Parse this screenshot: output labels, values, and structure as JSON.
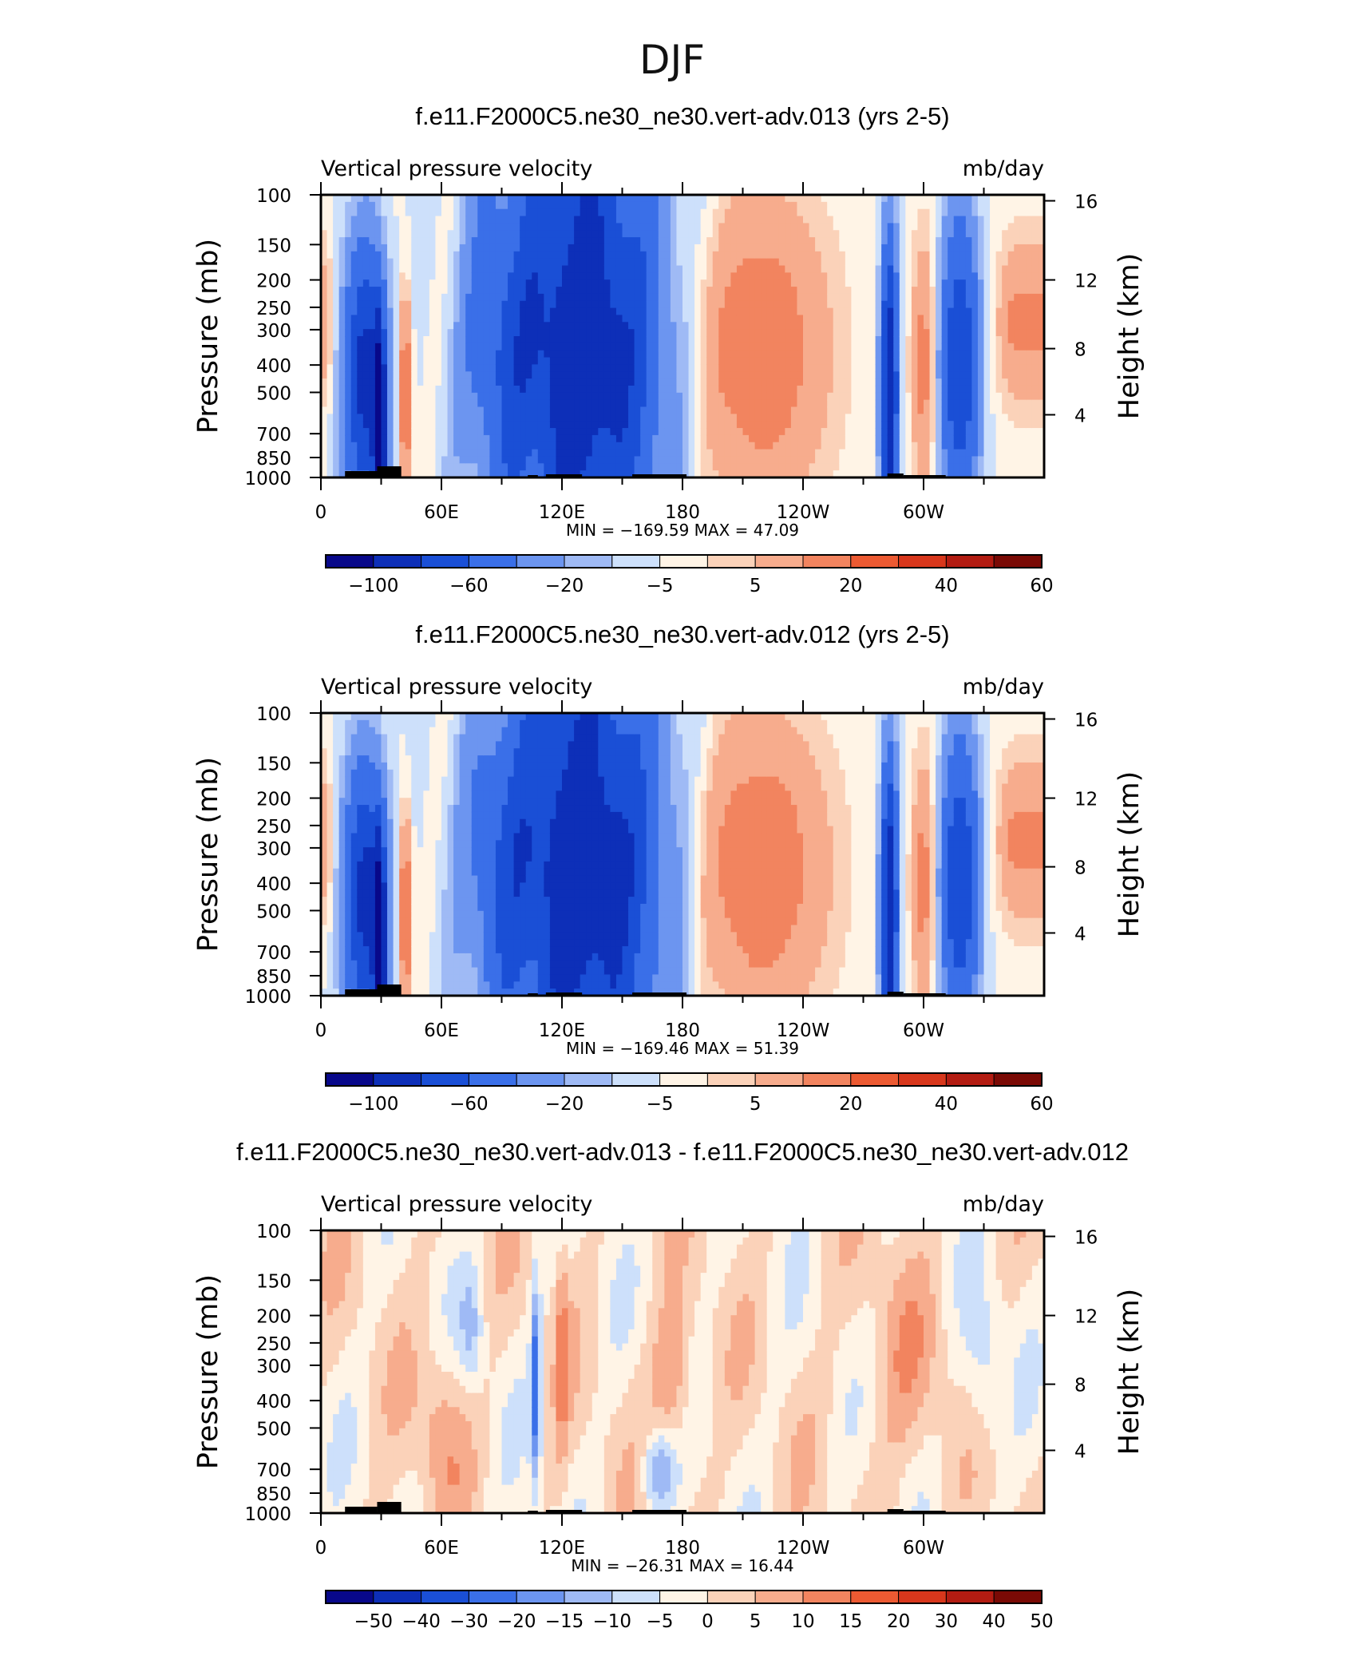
{
  "figure": {
    "title": "DJF"
  },
  "colors": {
    "cmap": [
      "#08088a",
      "#0d2fb8",
      "#1a4fd6",
      "#3a6fe8",
      "#6c95f0",
      "#9fbaf5",
      "#cde0fb",
      "#fff4e6",
      "#fbd2b9",
      "#f7ac8d",
      "#f2845f",
      "#ec5a32",
      "#d8371c",
      "#b31c12",
      "#7a0a05"
    ]
  },
  "chart_data": [
    {
      "type": "heatmap",
      "panel": "top",
      "title": "f.e11.F2000C5.ne30_ne30.vert-adv.013 (yrs 2-5)",
      "left_label": "Vertical pressure velocity",
      "right_label": "mb/day",
      "ylabel": "Pressure (mb)",
      "ylabel_right": "Height (km)",
      "y_ticks": [
        "100",
        "150",
        "200",
        "250",
        "300",
        "400",
        "500",
        "700",
        "850",
        "1000"
      ],
      "y_right_ticks": [
        "16",
        "12",
        "8",
        "4"
      ],
      "x_ticks": [
        "0",
        "60E",
        "120E",
        "180",
        "120W",
        "60W"
      ],
      "stats": "MIN = −169.59   MAX =   47.09",
      "min": -169.59,
      "max": 47.09,
      "colorbar_levels": [
        "−100",
        "−60",
        "−20",
        "−5",
        "5",
        "20",
        "40",
        "60"
      ]
    },
    {
      "type": "heatmap",
      "panel": "middle",
      "title": "f.e11.F2000C5.ne30_ne30.vert-adv.012 (yrs 2-5)",
      "left_label": "Vertical pressure velocity",
      "right_label": "mb/day",
      "ylabel": "Pressure (mb)",
      "ylabel_right": "Height (km)",
      "y_ticks": [
        "100",
        "150",
        "200",
        "250",
        "300",
        "400",
        "500",
        "700",
        "850",
        "1000"
      ],
      "y_right_ticks": [
        "16",
        "12",
        "8",
        "4"
      ],
      "x_ticks": [
        "0",
        "60E",
        "120E",
        "180",
        "120W",
        "60W"
      ],
      "stats": "MIN = −169.46   MAX =   51.39",
      "min": -169.46,
      "max": 51.39,
      "colorbar_levels": [
        "−100",
        "−60",
        "−20",
        "−5",
        "5",
        "20",
        "40",
        "60"
      ]
    },
    {
      "type": "heatmap",
      "panel": "bottom",
      "title": "f.e11.F2000C5.ne30_ne30.vert-adv.013 - f.e11.F2000C5.ne30_ne30.vert-adv.012",
      "left_label": "Vertical pressure velocity",
      "right_label": "mb/day",
      "ylabel": "Pressure (mb)",
      "ylabel_right": "Height (km)",
      "y_ticks": [
        "100",
        "150",
        "200",
        "250",
        "300",
        "400",
        "500",
        "700",
        "850",
        "1000"
      ],
      "y_right_ticks": [
        "16",
        "12",
        "8",
        "4"
      ],
      "x_ticks": [
        "0",
        "60E",
        "120E",
        "180",
        "120W",
        "60W"
      ],
      "stats": "MIN = −26.31   MAX =   16.44",
      "min": -26.31,
      "max": 16.44,
      "colorbar_levels": [
        "−50",
        "−40",
        "−30",
        "−20",
        "−15",
        "−10",
        "−5",
        "0",
        "5",
        "10",
        "15",
        "20",
        "30",
        "40",
        "50"
      ]
    }
  ]
}
